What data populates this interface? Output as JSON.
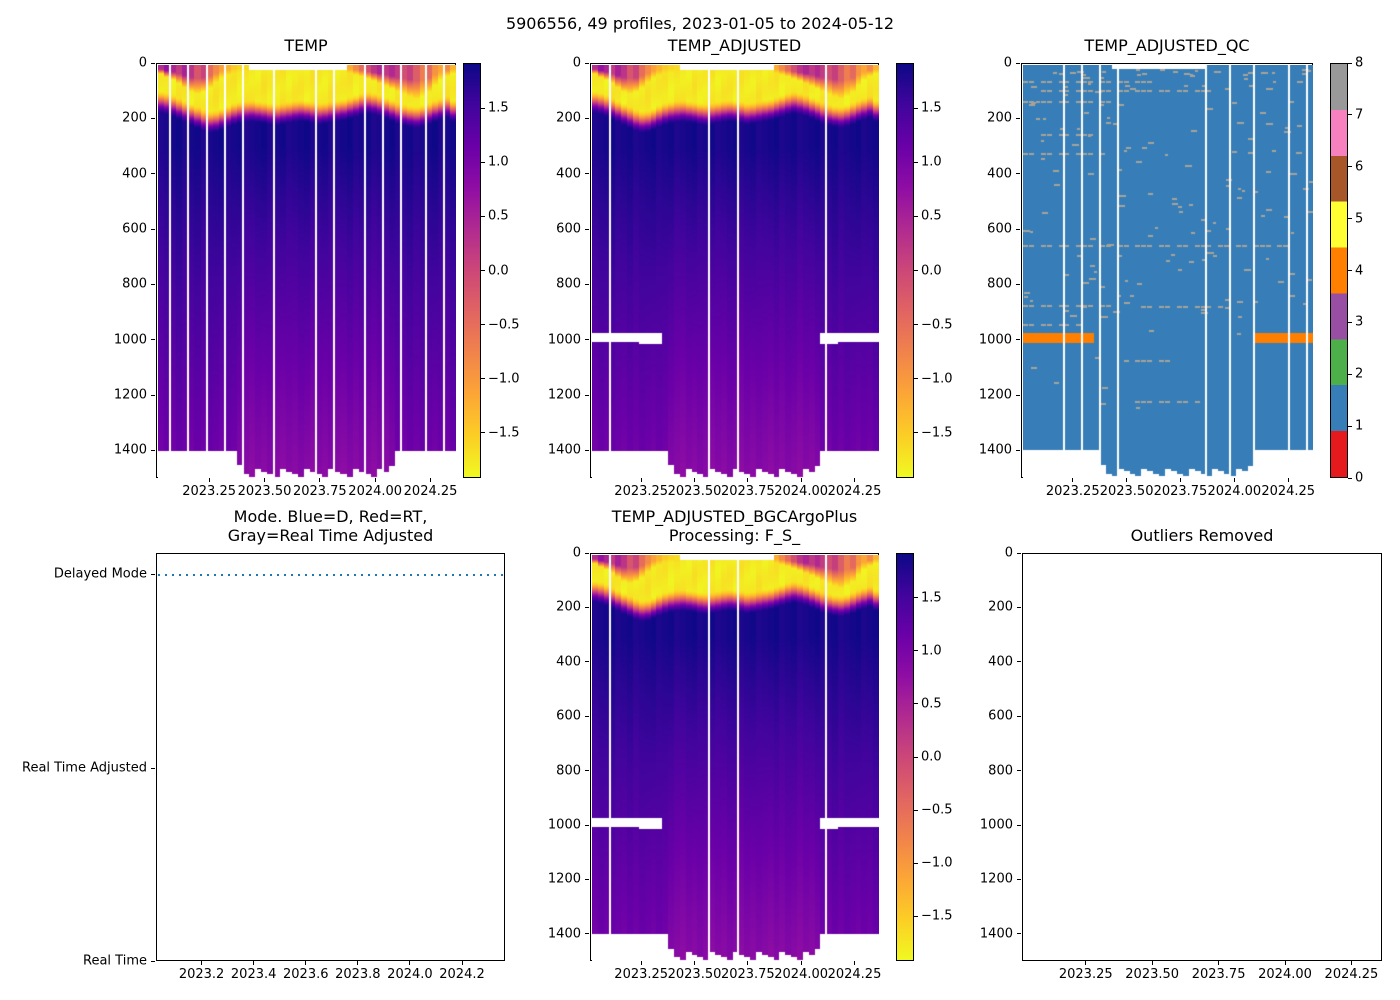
{
  "figure": {
    "title": "5906556, 49 profiles, 2023-01-05 to 2024-05-12",
    "platform_id": "5906556",
    "n_profiles": 49,
    "date_range": "2023-01-05 to 2024-05-12"
  },
  "chart_data": {
    "type": "heatmap",
    "x_domain": [
      2023.01,
      2024.365
    ],
    "x_domain_mode": [
      2023.025,
      2024.365
    ],
    "depth_domain": [
      0,
      1500
    ],
    "profiles": {
      "count": 49,
      "surface_temp": [
        0.35,
        0.7,
        0.45,
        0.15,
        0.5,
        0.25,
        -0.2,
        0.05,
        -0.5,
        -0.85,
        -1.1,
        -1.3,
        -1.5,
        -1.6,
        -1.65,
        -1.7,
        -1.72,
        -1.68,
        -1.74,
        -1.7,
        -1.66,
        -1.72,
        -1.7,
        -1.74,
        -1.68,
        -1.7,
        -1.72,
        -1.66,
        -1.7,
        -1.74,
        -1.7,
        -1.2,
        -0.85,
        -0.5,
        -0.1,
        0.25,
        0.45,
        0.2,
        0.4,
        0.15,
        -0.1,
        0.1,
        -0.3,
        -0.7,
        -0.45,
        -0.95,
        -1.15,
        -0.85,
        -1.3
      ],
      "surface_layer_thickness_m": [
        30,
        42,
        52,
        65,
        80,
        95,
        102,
        96,
        82,
        62,
        46,
        36,
        28,
        24,
        22,
        20,
        20,
        20,
        20,
        20,
        20,
        20,
        20,
        20,
        20,
        20,
        20,
        20,
        20,
        20,
        20,
        28,
        34,
        40,
        48,
        56,
        64,
        74,
        84,
        94,
        104,
        112,
        120,
        112,
        96,
        72,
        52,
        38,
        30
      ],
      "mixed_layer_depth_m": [
        118,
        124,
        132,
        142,
        152,
        163,
        174,
        184,
        190,
        188,
        180,
        170,
        162,
        156,
        152,
        150,
        153,
        157,
        161,
        164,
        160,
        155,
        151,
        149,
        152,
        156,
        161,
        158,
        153,
        149,
        146,
        140,
        133,
        126,
        121,
        124,
        131,
        140,
        149,
        158,
        165,
        170,
        173,
        168,
        160,
        151,
        143,
        136,
        150
      ],
      "cold_band_temp": -1.78,
      "subsurface_max_temp": 1.85,
      "bottom_temp_center": 0.82,
      "bottom_temp_side": 1.05,
      "deep_col_range": [
        13,
        38
      ],
      "shallow_notch_col_range": [
        15,
        30
      ],
      "bottom_depth_side_m": 1400,
      "bottom_depth_center_m": 1478
    },
    "heat_colorbar": {
      "vmin": -1.92,
      "vmax": 1.92,
      "tick_values": [
        1.5,
        1.0,
        0.5,
        0.0,
        -0.5,
        -1.0,
        -1.5
      ],
      "tick_labels": [
        "1.5",
        "1.0",
        "0.5",
        "0.0",
        "−0.5",
        "−1.0",
        "−1.5"
      ]
    },
    "heat_xticks": {
      "values": [
        2023.25,
        2023.5,
        2023.75,
        2024.0,
        2024.25
      ],
      "labels": [
        "2023.25",
        "2023.50",
        "2023.75",
        "2024.00",
        "2024.25"
      ]
    },
    "depth_yticks": {
      "values": [
        0,
        200,
        400,
        600,
        800,
        1000,
        1200,
        1400
      ],
      "labels": [
        "0",
        "200",
        "400",
        "600",
        "800",
        "1000",
        "1200",
        "1400"
      ]
    },
    "panels": [
      {
        "id": "temp",
        "type": "heatmap",
        "title": "TEMP",
        "gap_after_cols": [
          1,
          4,
          7,
          10,
          13,
          18,
          25,
          28,
          33,
          36,
          39,
          43,
          46
        ],
        "white_stripe": null
      },
      {
        "id": "temp_adjusted",
        "type": "heatmap",
        "title": "TEMP_ADJUSTED",
        "gap_after_cols": [
          2,
          19,
          24,
          39
        ],
        "white_stripe": [
          {
            "cols": [
              0,
              11
            ],
            "depth": [
              972,
              1006
            ]
          },
          {
            "cols": [
              8,
              11
            ],
            "depth": [
              1004,
              1013
            ]
          },
          {
            "cols": [
              39,
              48
            ],
            "depth": [
              972,
              1006
            ]
          },
          {
            "cols": [
              39,
              41
            ],
            "depth": [
              1004,
              1013
            ]
          }
        ]
      },
      {
        "id": "qc",
        "type": "qc",
        "title": "TEMP_ADJUSTED_QC",
        "base_qc_value": 1,
        "gap_after_cols": [
          6,
          9,
          12,
          15,
          30,
          34,
          38,
          44,
          47
        ],
        "orange_band": {
          "qc_value": 4,
          "rects": [
            {
              "cols": [
                0,
                11
              ],
              "depth": [
                972,
                1010
              ]
            },
            {
              "cols": [
                39,
                48
              ],
              "depth": [
                972,
                1010
              ]
            }
          ]
        },
        "noise_dashes": {
          "qc_value": 8,
          "seed": 13,
          "count": 170,
          "shallow_bias_max_depth_m": 900
        },
        "long_lines": [
          {
            "depth": 58,
            "c0": 0,
            "c1": 22
          },
          {
            "depth": 92,
            "c0": 2,
            "c1": 31
          },
          {
            "depth": 132,
            "c0": 0,
            "c1": 14
          },
          {
            "depth": 250,
            "c0": 3,
            "c1": 11
          },
          {
            "depth": 318,
            "c0": 0,
            "c1": 13
          },
          {
            "depth": 655,
            "c0": 0,
            "c1": 44
          },
          {
            "depth": 872,
            "c0": 0,
            "c1": 14
          },
          {
            "depth": 874,
            "c0": 20,
            "c1": 33
          },
          {
            "depth": 940,
            "c0": 0,
            "c1": 9
          },
          {
            "depth": 1070,
            "c0": 17,
            "c1": 24
          },
          {
            "depth": 1222,
            "c0": 19,
            "c1": 29
          }
        ],
        "colorbar": {
          "tick_labels": [
            "0",
            "1",
            "2",
            "3",
            "4",
            "5",
            "6",
            "7",
            "8"
          ],
          "tick_values": [
            0,
            1,
            2,
            3,
            4,
            5,
            6,
            7,
            8
          ]
        }
      },
      {
        "id": "mode",
        "type": "mode",
        "title_lines": [
          "Mode. Blue=D, Red=RT,",
          "Gray=Real Time Adjusted"
        ],
        "ytick_labels": [
          "Delayed Mode",
          "Real Time Adjusted",
          "Real Time"
        ],
        "line_level": "Delayed Mode",
        "line_style": "dotted",
        "line_color": "#1f77b4",
        "xticks": {
          "values": [
            2023.2,
            2023.4,
            2023.6,
            2023.8,
            2024.0,
            2024.2
          ],
          "labels": [
            "2023.2",
            "2023.4",
            "2023.6",
            "2023.8",
            "2024.0",
            "2024.2"
          ]
        }
      },
      {
        "id": "bgc",
        "type": "heatmap",
        "title_lines": [
          "TEMP_ADJUSTED_BGCArgoPlus",
          "Processing: F_S_"
        ],
        "gap_after_cols": [
          2,
          19,
          24,
          39
        ],
        "white_stripe": [
          {
            "cols": [
              0,
              11
            ],
            "depth": [
              972,
              1006
            ]
          },
          {
            "cols": [
              8,
              11
            ],
            "depth": [
              1004,
              1013
            ]
          },
          {
            "cols": [
              39,
              48
            ],
            "depth": [
              972,
              1006
            ]
          },
          {
            "cols": [
              39,
              41
            ],
            "depth": [
              1004,
              1013
            ]
          }
        ]
      },
      {
        "id": "outliers",
        "type": "empty",
        "title": "Outliers Removed"
      }
    ]
  },
  "palette": {
    "plasma_fracs": [
      0,
      0.1,
      0.2,
      0.3,
      0.4,
      0.5,
      0.6,
      0.7,
      0.8,
      0.9,
      1
    ],
    "plasma_colors": [
      "#0d0887",
      "#41049d",
      "#6a00a8",
      "#8f0da4",
      "#b12a90",
      "#cc4778",
      "#e16462",
      "#f1834b",
      "#fca636",
      "#fcce25",
      "#f0f921"
    ],
    "qc_colors": [
      "#e41a1c",
      "#377eb8",
      "#4daf4a",
      "#984ea3",
      "#ff7f00",
      "#ffff33",
      "#a65628",
      "#f781bf",
      "#999999"
    ],
    "qc_blue": "#377eb8",
    "qc_orange": "#ff7f00",
    "qc_gray_dash": "#a6a29b",
    "mode_line_blue": "#1f77b4",
    "axes_edge": "#000000",
    "background": "#ffffff"
  }
}
